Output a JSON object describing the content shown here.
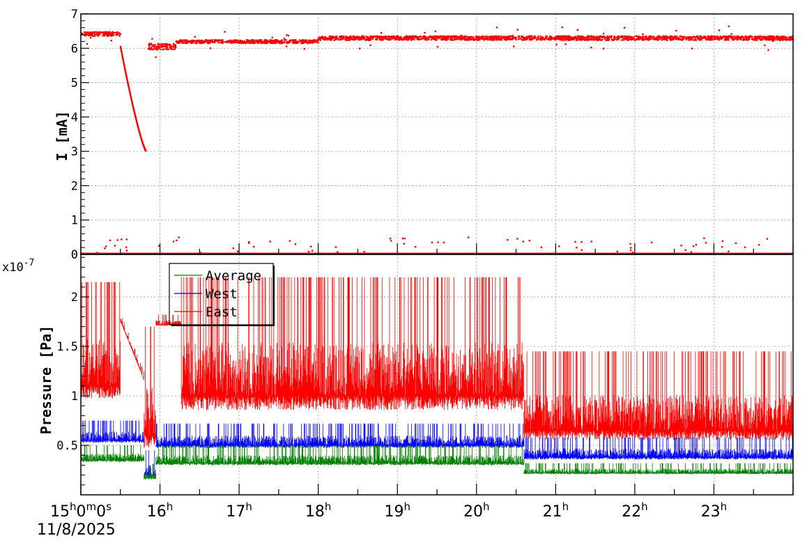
{
  "chart_data": [
    {
      "type": "scatter",
      "ylabel": "I [mA]",
      "ylim": [
        0,
        7
      ],
      "yticks": [
        "0",
        "1",
        "2",
        "3",
        "4",
        "5",
        "6",
        "7"
      ],
      "xlim": [
        15.0,
        24.0
      ],
      "grid": true,
      "series": [
        {
          "color": "#ff0000",
          "segments": [
            {
              "x0": 15.0,
              "x1": 15.5,
              "y": 6.42,
              "noise": 0.06
            },
            {
              "x0": 15.5,
              "x1": 15.82,
              "y_start": 6.05,
              "y_end": 3.02,
              "decay": true
            },
            {
              "x0": 15.85,
              "x1": 16.2,
              "y": 6.05,
              "noise": 0.09
            },
            {
              "x0": 16.2,
              "x1": 18.0,
              "y": 6.2,
              "noise": 0.05
            },
            {
              "x0": 18.0,
              "x1": 24.0,
              "y": 6.3,
              "noise": 0.06
            }
          ],
          "zero_band": {
            "x0": 15.0,
            "x1": 24.0,
            "y": 0.02
          }
        }
      ]
    },
    {
      "type": "line",
      "ylabel": "Pressure [Pa]",
      "yscale_label": "x10-7",
      "yscale_base": "x10",
      "yscale_exp": "-7",
      "ylim": [
        0.0,
        2.43
      ],
      "yticks": [
        "0.5",
        "1",
        "1.5",
        "2"
      ],
      "xlim": [
        15.0,
        24.0
      ],
      "xticks": [
        "15h0m0s",
        "16h",
        "17h",
        "18h",
        "19h",
        "20h",
        "21h",
        "22h",
        "23h"
      ],
      "date_label": "11/8/2025",
      "grid": true,
      "legend": {
        "placement": "top-left",
        "entries": [
          {
            "name": "Average",
            "color": "#008000"
          },
          {
            "name": "West",
            "color": "#0000ff"
          },
          {
            "name": "East",
            "color": "#ff0000"
          }
        ]
      },
      "series": [
        {
          "name": "East",
          "color": "#ff0000",
          "segments": [
            {
              "x0": 15.0,
              "x1": 15.5,
              "base": 1.1,
              "peak": 2.15
            },
            {
              "x0": 15.5,
              "x1": 15.8,
              "ramp_start": 1.8,
              "ramp_end": 1.2
            },
            {
              "x0": 15.8,
              "x1": 15.95,
              "base": 0.6,
              "peak": 1.7
            },
            {
              "x0": 15.95,
              "x1": 16.27,
              "base": 1.72,
              "peak": 1.82
            },
            {
              "x0": 16.27,
              "x1": 20.6,
              "base": 1.0,
              "peak": 2.2
            },
            {
              "x0": 20.6,
              "x1": 24.0,
              "base": 0.65,
              "peak": 1.45
            }
          ]
        },
        {
          "name": "West",
          "color": "#0000ff",
          "segments": [
            {
              "x0": 15.0,
              "x1": 15.8,
              "base": 0.55,
              "peak": 0.75
            },
            {
              "x0": 15.8,
              "x1": 15.95,
              "base": 0.2,
              "peak": 0.45
            },
            {
              "x0": 15.95,
              "x1": 20.6,
              "base": 0.5,
              "peak": 0.72
            },
            {
              "x0": 20.6,
              "x1": 24.0,
              "base": 0.38,
              "peak": 0.58
            }
          ]
        },
        {
          "name": "Average",
          "color": "#008000",
          "segments": [
            {
              "x0": 15.0,
              "x1": 15.8,
              "base": 0.35,
              "peak": 0.5
            },
            {
              "x0": 15.8,
              "x1": 15.95,
              "base": 0.17,
              "peak": 0.3
            },
            {
              "x0": 15.95,
              "x1": 20.6,
              "base": 0.32,
              "peak": 0.5
            },
            {
              "x0": 20.6,
              "x1": 24.0,
              "base": 0.22,
              "peak": 0.32
            }
          ]
        }
      ]
    }
  ]
}
